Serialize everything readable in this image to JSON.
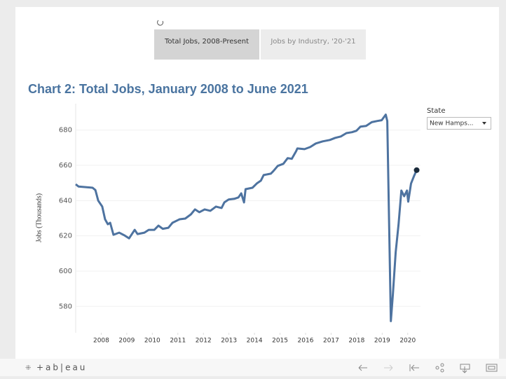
{
  "tabs": [
    "Total Jobs, 2008-Present",
    "Jobs by Industry, '20-'21"
  ],
  "filter": {
    "label": "State",
    "value": "New Hamps..."
  },
  "toolbar": {
    "logo": "+ab|eau"
  },
  "chart_data": {
    "type": "line",
    "title": "Chart 2: Total Jobs, January 2008 to June 2021",
    "y_label": "Jobs (Thousands)",
    "color": "#4e73a0",
    "grid": true,
    "x": [
      2008.0,
      2008.11,
      2008.66,
      2008.77,
      2008.88,
      2009.04,
      2009.15,
      2009.26,
      2009.35,
      2009.48,
      2009.7,
      2009.92,
      2010.09,
      2010.31,
      2010.42,
      2010.69,
      2010.86,
      2011.08,
      2011.24,
      2011.41,
      2011.63,
      2011.79,
      2012.07,
      2012.29,
      2012.51,
      2012.67,
      2012.84,
      2013.05,
      2013.27,
      2013.49,
      2013.71,
      2013.82,
      2013.99,
      2014.21,
      2014.37,
      2014.48,
      2014.59,
      2014.65,
      2014.92,
      2015.09,
      2015.25,
      2015.36,
      2015.64,
      2015.75,
      2015.91,
      2016.13,
      2016.3,
      2016.46,
      2016.63,
      2016.68,
      2016.96,
      2017.18,
      2017.4,
      2017.67,
      2017.95,
      2018.16,
      2018.38,
      2018.6,
      2018.82,
      2018.99,
      2019.15,
      2019.37,
      2019.59,
      2019.81,
      2019.98,
      2020.14,
      2020.2,
      2020.34,
      2020.42,
      2020.53,
      2020.64,
      2020.75,
      2020.86,
      2020.97,
      2021.02,
      2021.13,
      2021.24,
      2021.35
    ],
    "values": [
      649.3,
      648.0,
      647.3,
      646.0,
      640.0,
      636.6,
      629.4,
      626.6,
      627.4,
      620.6,
      621.8,
      620.2,
      618.6,
      623.4,
      621.0,
      621.8,
      623.4,
      623.4,
      625.8,
      624.0,
      624.6,
      627.4,
      629.4,
      629.8,
      632.2,
      635.0,
      633.4,
      635.0,
      634.2,
      636.6,
      635.8,
      639.0,
      640.6,
      641.0,
      641.8,
      644.1,
      639.0,
      646.5,
      647.3,
      649.7,
      651.3,
      654.5,
      655.3,
      656.9,
      659.7,
      660.9,
      664.1,
      663.7,
      668.0,
      669.6,
      669.2,
      670.4,
      672.4,
      673.6,
      674.4,
      675.6,
      676.4,
      678.3,
      678.8,
      679.6,
      682.0,
      682.4,
      684.5,
      685.2,
      685.6,
      688.8,
      685.2,
      571.6,
      586.8,
      610.7,
      626.6,
      645.7,
      642.5,
      645.7,
      639.4,
      649.7,
      653.7,
      657.3
    ],
    "xlim": [
      2008,
      2021.5
    ],
    "xticks": [
      {
        "value": 2009,
        "label": "2008"
      },
      {
        "value": 2010,
        "label": "2009"
      },
      {
        "value": 2011,
        "label": "2010"
      },
      {
        "value": 2012,
        "label": "2011"
      },
      {
        "value": 2013,
        "label": "2012"
      },
      {
        "value": 2014,
        "label": "2013"
      },
      {
        "value": 2015,
        "label": "2014"
      },
      {
        "value": 2016,
        "label": "2015"
      },
      {
        "value": 2017,
        "label": "2016"
      },
      {
        "value": 2018,
        "label": "2017"
      },
      {
        "value": 2019,
        "label": "2018"
      },
      {
        "value": 2020,
        "label": "2019"
      },
      {
        "value": 2021,
        "label": "2020"
      }
    ],
    "ylim": [
      565,
      695
    ],
    "yticks": [
      580,
      600,
      620,
      640,
      660,
      680
    ]
  }
}
